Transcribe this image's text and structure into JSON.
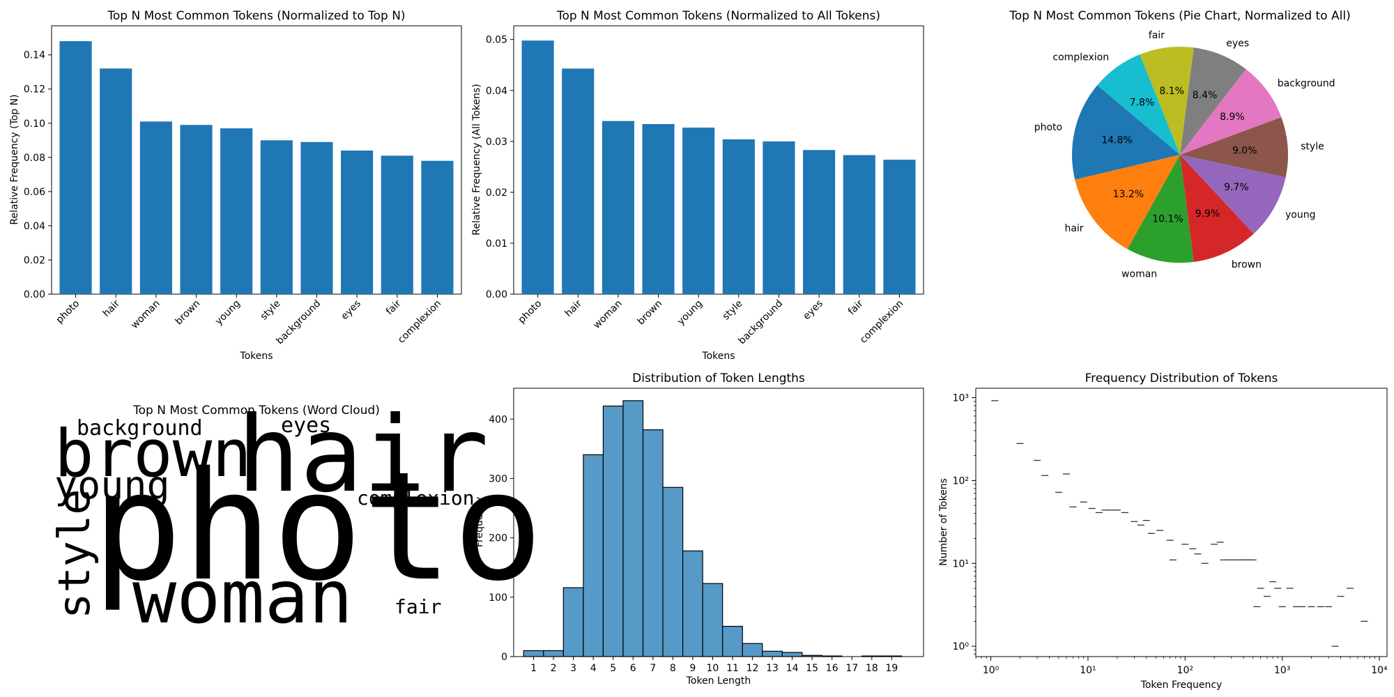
{
  "chart_data": [
    {
      "type": "bar",
      "title": "Top N Most Common Tokens (Normalized to Top N)",
      "xlabel": "Tokens",
      "ylabel": "Relative Frequency (Top N)",
      "categories": [
        "photo",
        "hair",
        "woman",
        "brown",
        "young",
        "style",
        "background",
        "eyes",
        "fair",
        "complexion"
      ],
      "values": [
        0.148,
        0.132,
        0.101,
        0.099,
        0.097,
        0.09,
        0.089,
        0.084,
        0.081,
        0.078
      ],
      "ylim": [
        0,
        0.157
      ],
      "yticks": [
        0.0,
        0.02,
        0.04,
        0.06,
        0.08,
        0.1,
        0.12,
        0.14
      ],
      "ytick_labels": [
        "0.00",
        "0.02",
        "0.04",
        "0.06",
        "0.08",
        "0.10",
        "0.12",
        "0.14"
      ],
      "color": "#1f77b4"
    },
    {
      "type": "bar",
      "title": "Top N Most Common Tokens (Normalized to All Tokens)",
      "xlabel": "Tokens",
      "ylabel": "Relative Frequency (All Tokens)",
      "categories": [
        "photo",
        "hair",
        "woman",
        "brown",
        "young",
        "style",
        "background",
        "eyes",
        "fair",
        "complexion"
      ],
      "values": [
        0.0498,
        0.0443,
        0.034,
        0.0334,
        0.0327,
        0.0304,
        0.03,
        0.0283,
        0.0273,
        0.0264
      ],
      "ylim": [
        0,
        0.0527
      ],
      "yticks": [
        0.0,
        0.01,
        0.02,
        0.03,
        0.04,
        0.05
      ],
      "ytick_labels": [
        "0.00",
        "0.01",
        "0.02",
        "0.03",
        "0.04",
        "0.05"
      ],
      "color": "#1f77b4"
    },
    {
      "type": "pie",
      "title": "Top N Most Common Tokens (Pie Chart, Normalized to All)",
      "labels": [
        "photo",
        "hair",
        "woman",
        "brown",
        "young",
        "style",
        "background",
        "eyes",
        "fair",
        "complexion"
      ],
      "values": [
        14.8,
        13.2,
        10.1,
        9.9,
        9.7,
        9.0,
        8.9,
        8.4,
        8.1,
        7.8
      ],
      "pct_labels": [
        "14.8%",
        "13.2%",
        "10.1%",
        "9.9%",
        "9.7%",
        "9.0%",
        "8.9%",
        "8.4%",
        "8.1%",
        "7.8%"
      ],
      "colors": [
        "#1f77b4",
        "#ff7f0e",
        "#2ca02c",
        "#d62728",
        "#9467bd",
        "#8c564b",
        "#e377c2",
        "#7f7f7f",
        "#bcbd22",
        "#17becf"
      ],
      "start_angle_deg": 140
    },
    {
      "type": "wordcloud",
      "title": "Top N Most Common Tokens (Word Cloud)",
      "words": [
        {
          "text": "photo",
          "color": "#31688e"
        },
        {
          "text": "hair",
          "color": "#31688e"
        },
        {
          "text": "woman",
          "color": "#6ccd5a"
        },
        {
          "text": "brown",
          "color": "#471365"
        },
        {
          "text": "young",
          "color": "#8ed542"
        },
        {
          "text": "style",
          "color": "#2d708e"
        },
        {
          "text": "background",
          "color": "#fde725"
        },
        {
          "text": "eyes",
          "color": "#482677"
        },
        {
          "text": "complexion",
          "color": "#20a486"
        },
        {
          "text": "fair",
          "color": "#20a486"
        }
      ]
    },
    {
      "type": "bar",
      "subtype": "histogram",
      "title": "Distribution of Token Lengths",
      "xlabel": "Token Length",
      "ylabel": "Frequency",
      "categories": [
        "1",
        "2",
        "3",
        "4",
        "5",
        "6",
        "7",
        "8",
        "9",
        "10",
        "11",
        "12",
        "13",
        "14",
        "15",
        "16",
        "17",
        "18",
        "19"
      ],
      "values": [
        10,
        10,
        116,
        340,
        422,
        431,
        382,
        285,
        178,
        123,
        51,
        22,
        9,
        7,
        2,
        1,
        0,
        1,
        1
      ],
      "ylim": [
        0,
        452
      ],
      "yticks": [
        0,
        100,
        200,
        300,
        400
      ],
      "ytick_labels": [
        "0",
        "100",
        "200",
        "300",
        "400"
      ],
      "color": "#5799c7"
    },
    {
      "type": "scatter",
      "title": "Frequency Distribution of Tokens",
      "xlabel": "Token Frequency",
      "ylabel": "Number of Tokens",
      "xscale": "log",
      "yscale": "log",
      "xlim": [
        0.7,
        12000
      ],
      "ylim": [
        0.75,
        1300
      ],
      "xticks": [
        1,
        10,
        100,
        1000,
        10000
      ],
      "xtick_labels": [
        "10⁰",
        "10¹",
        "10²",
        "10³",
        "10⁴"
      ],
      "yticks": [
        1,
        10,
        100,
        1000
      ],
      "ytick_labels": [
        "10⁰",
        "10¹",
        "10²",
        "10³"
      ],
      "marker": "_",
      "x": [
        1.1,
        2,
        3,
        3.6,
        5,
        6,
        7,
        9,
        11,
        13,
        15,
        17,
        20,
        24,
        30,
        35,
        40,
        45,
        55,
        70,
        75,
        100,
        120,
        135,
        160,
        200,
        230,
        250,
        280,
        300,
        330,
        370,
        400,
        430,
        470,
        500,
        550,
        600,
        700,
        800,
        900,
        1000,
        1200,
        1400,
        1600,
        2000,
        2500,
        3000,
        3500,
        4000,
        5000,
        7000
      ],
      "y": [
        920,
        280,
        175,
        115,
        72,
        120,
        48,
        55,
        46,
        41,
        44,
        44,
        44,
        41,
        32,
        29,
        33,
        23,
        25,
        19,
        11,
        17,
        15,
        13,
        10,
        17,
        18,
        11,
        11,
        11,
        11,
        11,
        11,
        11,
        11,
        11,
        3,
        5,
        4,
        6,
        5,
        3,
        5,
        3,
        3,
        3,
        3,
        3,
        1,
        4,
        5,
        2
      ]
    }
  ]
}
